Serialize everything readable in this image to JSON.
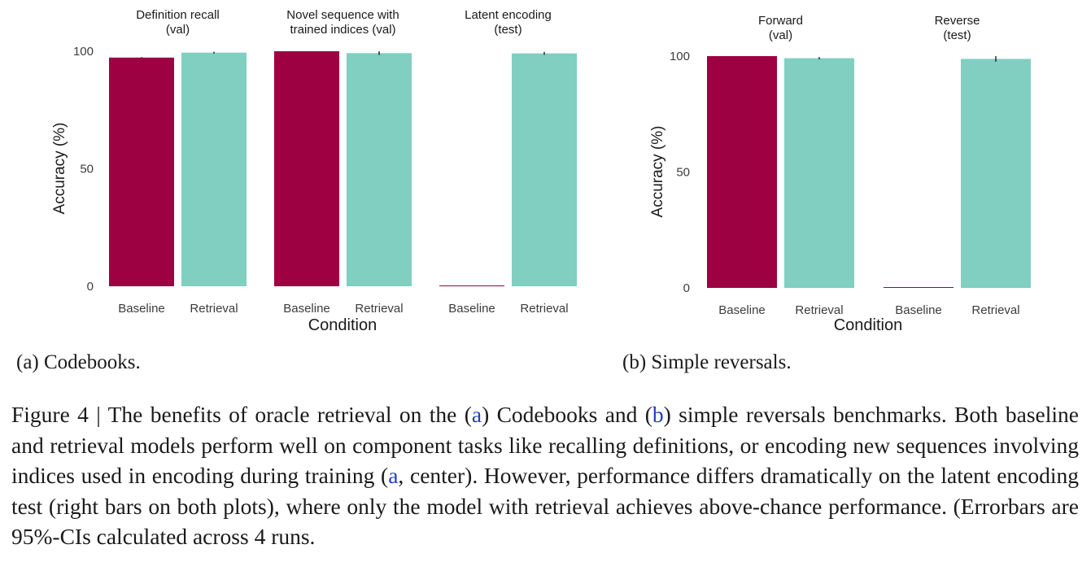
{
  "chart_data": [
    {
      "id": "codebooks",
      "type": "bar",
      "ylabel": "Accuracy (%)",
      "xlabel": "Condition",
      "ylim": [
        0,
        100
      ],
      "yticks": [
        0,
        50,
        100
      ],
      "grid": false,
      "legend": "none",
      "panels": [
        {
          "title": [
            "Definition recall",
            "(val)"
          ],
          "categories": [
            "Baseline",
            "Retrieval"
          ],
          "values": [
            97.3,
            99.4
          ],
          "errors": [
            0.2,
            0.4
          ]
        },
        {
          "title": [
            "Novel sequence with",
            "trained indices (val)"
          ],
          "categories": [
            "Baseline",
            "Retrieval"
          ],
          "values": [
            100,
            99.2
          ],
          "errors": [
            0,
            0.8
          ]
        },
        {
          "title": [
            "Latent encoding",
            "(test)"
          ],
          "categories": [
            "Baseline",
            "Retrieval"
          ],
          "values": [
            0.3,
            99.1
          ],
          "errors": [
            0,
            0.6
          ]
        }
      ],
      "colors": {
        "Baseline": "#9e0142",
        "Retrieval": "#80cfc1"
      }
    },
    {
      "id": "reversals",
      "type": "bar",
      "ylabel": "Accuracy (%)",
      "xlabel": "Condition",
      "ylim": [
        0,
        100
      ],
      "yticks": [
        0,
        50,
        100
      ],
      "grid": false,
      "legend": "none",
      "panels": [
        {
          "title": [
            "Forward",
            "(val)"
          ],
          "categories": [
            "Baseline",
            "Retrieval"
          ],
          "values": [
            100,
            99.1
          ],
          "errors": [
            0,
            0.5
          ]
        },
        {
          "title": [
            "Reverse",
            "(test)"
          ],
          "categories": [
            "Baseline",
            "Retrieval"
          ],
          "values": [
            0.2,
            98.8
          ],
          "errors": [
            0,
            1.2
          ]
        }
      ],
      "colors": {
        "Baseline": "#9e0142",
        "Retrieval": "#80cfc1"
      }
    }
  ],
  "subcaptions": {
    "a": "(a) Codebooks.",
    "b": "(b) Simple reversals."
  },
  "caption": {
    "p1": "Figure 4 | The benefits of oracle retrieval on the (",
    "ref_a": "a",
    "p2": ") Codebooks and (",
    "ref_b": "b",
    "p3": ") simple reversals benchmarks. Both baseline and retrieval models perform well on component tasks like recalling definitions, or encoding new sequences involving indices used in encoding during training (",
    "ref_a2": "a",
    "p4": ", center). However, performance differs dramatically on the latent encoding test (right bars on both plots), where only the model with retrieval achieves above-chance performance. (Errorbars are 95%-CIs calculated across 4 runs."
  }
}
